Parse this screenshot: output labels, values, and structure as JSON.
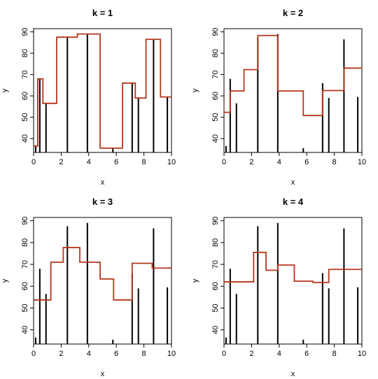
{
  "chart_data": [
    {
      "type": "line",
      "title": "k = 1",
      "xlabel": "x",
      "ylabel": "y",
      "xlim": [
        0,
        10
      ],
      "ylim": [
        33.5,
        91.5
      ],
      "xticks": [
        0,
        2,
        4,
        6,
        8,
        10
      ],
      "yticks": [
        40,
        50,
        60,
        70,
        80,
        90
      ],
      "spikes": {
        "x": [
          0.15,
          0.45,
          0.9,
          2.45,
          3.9,
          5.75,
          7.15,
          7.6,
          8.7,
          9.7
        ],
        "y": [
          36.5,
          68,
          56.5,
          87.5,
          89,
          35.5,
          66,
          59,
          86.5,
          59.5
        ]
      },
      "step_fit": {
        "color": "#b5371c",
        "breaks": [
          0,
          0.3,
          0.675,
          1.675,
          3.175,
          4.825,
          6.45,
          7.375,
          8.15,
          9.2,
          10
        ],
        "levels": [
          36.5,
          68,
          56.5,
          87.5,
          89,
          35.5,
          66,
          59,
          86.5,
          59.5
        ]
      }
    },
    {
      "type": "line",
      "title": "k = 2",
      "xlabel": "x",
      "ylabel": "y",
      "xlim": [
        0,
        10
      ],
      "ylim": [
        33.5,
        91.5
      ],
      "xticks": [
        0,
        2,
        4,
        6,
        8,
        10
      ],
      "yticks": [
        40,
        50,
        60,
        70,
        80,
        90
      ],
      "spikes": {
        "x": [
          0.15,
          0.45,
          0.9,
          2.45,
          3.9,
          5.75,
          7.15,
          7.6,
          8.7,
          9.7
        ],
        "y": [
          36.5,
          68,
          56.5,
          87.5,
          89,
          35.5,
          66,
          59,
          86.5,
          59.5
        ]
      },
      "step_fit": {
        "color": "#b5371c",
        "breaks": [
          0,
          0.45,
          0.675,
          1.45,
          2.45,
          3.9,
          5.75,
          7.15,
          7.6,
          8.7,
          10
        ],
        "levels": [
          52.3,
          62.3,
          62.3,
          72.3,
          88.3,
          62.3,
          50.8,
          62.5,
          62.5,
          73
        ]
      }
    },
    {
      "type": "line",
      "title": "k = 3",
      "xlabel": "x",
      "ylabel": "y",
      "xlim": [
        0,
        10
      ],
      "ylim": [
        33.5,
        91.5
      ],
      "xticks": [
        0,
        2,
        4,
        6,
        8,
        10
      ],
      "yticks": [
        40,
        50,
        60,
        70,
        80,
        90
      ],
      "spikes": {
        "x": [
          0.15,
          0.45,
          0.9,
          2.45,
          3.9,
          5.75,
          7.15,
          7.6,
          8.7,
          9.7
        ],
        "y": [
          36.5,
          68,
          56.5,
          87.5,
          89,
          35.5,
          66,
          59,
          86.5,
          59.5
        ]
      },
      "step_fit": {
        "color": "#b5371c",
        "breaks": [
          0,
          0.675,
          1.25,
          2.15,
          3.35,
          4.825,
          5.8,
          7.15,
          7.6,
          8.6,
          10
        ],
        "levels": [
          53.7,
          53.7,
          71,
          77.7,
          71,
          63.3,
          53.7,
          70.5,
          70.5,
          68.3
        ]
      }
    },
    {
      "type": "line",
      "title": "k = 4",
      "xlabel": "x",
      "ylabel": "y",
      "xlim": [
        0,
        10
      ],
      "ylim": [
        33.5,
        91.5
      ],
      "xticks": [
        0,
        2,
        4,
        6,
        8,
        10
      ],
      "yticks": [
        40,
        50,
        60,
        70,
        80,
        90
      ],
      "spikes": {
        "x": [
          0.15,
          0.45,
          0.9,
          2.45,
          3.9,
          5.75,
          7.15,
          7.6,
          8.7,
          9.7
        ],
        "y": [
          36.5,
          68,
          56.5,
          87.5,
          89,
          35.5,
          66,
          59,
          86.5,
          59.5
        ]
      },
      "step_fit": {
        "color": "#b5371c",
        "breaks": [
          0,
          1.45,
          2.15,
          3.05,
          3.9,
          5.1,
          6.45,
          7.6,
          8.1,
          10
        ],
        "levels": [
          62,
          62,
          75.5,
          67.3,
          69.7,
          62.3,
          61.7,
          67.7,
          67.7
        ]
      }
    }
  ]
}
